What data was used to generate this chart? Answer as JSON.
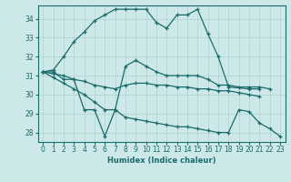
{
  "xlabel": "Humidex (Indice chaleur)",
  "bg_color": "#cce8e8",
  "line_color": "#1a6b6b",
  "grid_color": "#b0d0d0",
  "xlim": [
    -0.5,
    23.5
  ],
  "ylim": [
    27.5,
    34.7
  ],
  "yticks": [
    28,
    29,
    30,
    31,
    32,
    33,
    34
  ],
  "xticks": [
    0,
    1,
    2,
    3,
    4,
    5,
    6,
    7,
    8,
    9,
    10,
    11,
    12,
    13,
    14,
    15,
    16,
    17,
    18,
    19,
    20,
    21,
    22,
    23
  ],
  "series": [
    {
      "x": [
        0,
        1,
        2,
        3,
        4,
        5,
        6,
        7,
        8,
        9,
        10,
        11,
        12,
        13,
        14,
        15,
        16,
        17,
        18,
        20,
        21
      ],
      "y": [
        31.2,
        31.3,
        32.0,
        32.8,
        33.3,
        33.9,
        34.2,
        34.5,
        34.5,
        34.5,
        34.5,
        33.8,
        33.5,
        34.2,
        34.2,
        34.5,
        33.2,
        32.0,
        30.4,
        30.3,
        30.3
      ]
    },
    {
      "x": [
        0,
        1,
        2,
        3,
        4,
        5,
        6,
        7,
        8,
        9,
        10,
        11,
        12,
        13,
        14,
        15,
        16,
        17,
        18,
        19,
        20,
        21,
        22,
        23
      ],
      "y": [
        31.2,
        31.2,
        30.8,
        30.8,
        29.2,
        29.2,
        27.8,
        29.2,
        31.5,
        31.8,
        31.5,
        31.2,
        31.0,
        31.0,
        31.0,
        31.0,
        30.8,
        30.5,
        30.5,
        30.4,
        30.4,
        30.4,
        30.3,
        null
      ]
    },
    {
      "x": [
        0,
        1,
        2,
        3,
        4,
        5,
        6,
        7,
        8,
        9,
        10,
        11,
        12,
        13,
        14,
        15,
        16,
        17,
        18,
        19,
        20,
        21,
        22,
        23
      ],
      "y": [
        31.2,
        31.1,
        31.0,
        30.8,
        30.7,
        30.5,
        30.4,
        30.3,
        30.5,
        30.6,
        30.6,
        30.5,
        30.5,
        30.4,
        30.4,
        30.3,
        30.3,
        30.2,
        30.2,
        30.1,
        30.0,
        29.9,
        null,
        null
      ]
    },
    {
      "x": [
        0,
        1,
        2,
        3,
        4,
        5,
        6,
        7,
        8,
        9,
        10,
        11,
        12,
        13,
        14,
        15,
        16,
        17,
        18,
        19,
        20,
        21,
        22,
        23
      ],
      "y": [
        31.2,
        30.9,
        30.6,
        30.3,
        30.0,
        29.6,
        29.2,
        29.2,
        28.8,
        28.7,
        28.6,
        28.5,
        28.4,
        28.3,
        28.3,
        28.2,
        28.1,
        28.0,
        28.0,
        29.2,
        29.1,
        28.5,
        28.2,
        27.8
      ]
    }
  ]
}
